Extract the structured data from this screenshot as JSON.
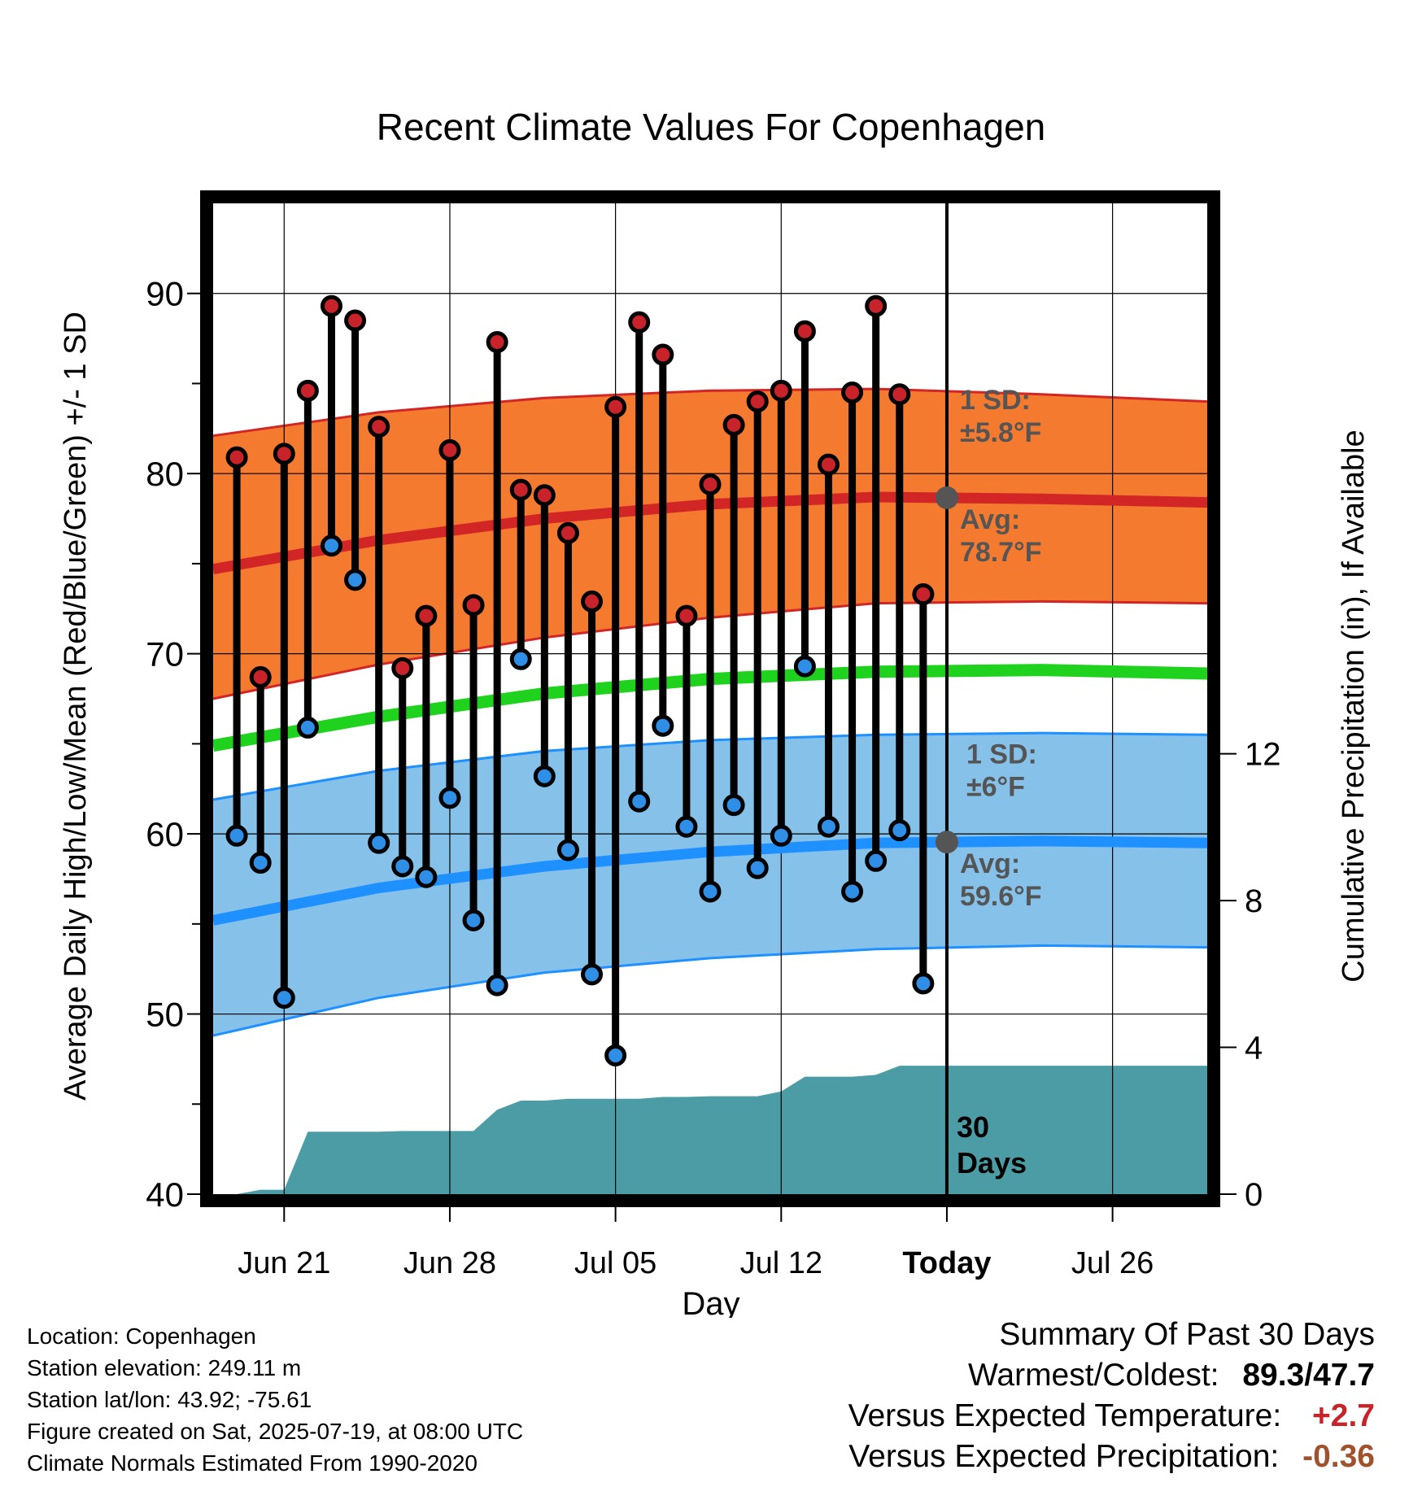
{
  "chart_data": {
    "type": "line",
    "title": "Recent Climate Values For Copenhagen",
    "xlabel": "Day",
    "ylabel": "Average Daily High/Low/Mean (Red/Blue/Green) +/- 1 SD",
    "y2label": "Cumulative Precipitation (in), If Available",
    "ylim": [
      40,
      95
    ],
    "y2lim": [
      0,
      27
    ],
    "yticks": [
      40,
      50,
      60,
      70,
      80,
      90
    ],
    "y2ticks": [
      0,
      4,
      8,
      12
    ],
    "x_start": "2025-06-18",
    "x_end": "2025-07-30",
    "today": "2025-07-19",
    "xtick_labels": [
      {
        "date": "2025-06-21",
        "label": "Jun 21"
      },
      {
        "date": "2025-06-28",
        "label": "Jun 28"
      },
      {
        "date": "2025-07-05",
        "label": "Jul 05"
      },
      {
        "date": "2025-07-12",
        "label": "Jul 12"
      },
      {
        "date": "2025-07-19",
        "label": "Today"
      },
      {
        "date": "2025-07-26",
        "label": "Jul 26"
      }
    ],
    "daily": {
      "dates": [
        "2025-06-19",
        "2025-06-20",
        "2025-06-21",
        "2025-06-22",
        "2025-06-23",
        "2025-06-24",
        "2025-06-25",
        "2025-06-26",
        "2025-06-27",
        "2025-06-28",
        "2025-06-29",
        "2025-06-30",
        "2025-07-01",
        "2025-07-02",
        "2025-07-03",
        "2025-07-04",
        "2025-07-05",
        "2025-07-06",
        "2025-07-07",
        "2025-07-08",
        "2025-07-09",
        "2025-07-10",
        "2025-07-11",
        "2025-07-12",
        "2025-07-13",
        "2025-07-14",
        "2025-07-15",
        "2025-07-16",
        "2025-07-17",
        "2025-07-18"
      ],
      "high": [
        80.9,
        68.7,
        81.1,
        84.6,
        89.3,
        88.5,
        82.6,
        69.2,
        72.1,
        81.3,
        72.7,
        87.3,
        79.1,
        78.8,
        76.7,
        72.9,
        83.7,
        88.4,
        86.6,
        72.1,
        79.4,
        82.7,
        84.0,
        84.6,
        87.9,
        80.5,
        84.5,
        89.3,
        84.4,
        73.3
      ],
      "low": [
        59.9,
        58.4,
        50.9,
        65.9,
        76.0,
        74.1,
        59.5,
        58.2,
        57.6,
        62.0,
        55.2,
        51.6,
        69.7,
        63.2,
        59.1,
        52.2,
        47.7,
        61.8,
        66.0,
        60.4,
        56.8,
        61.6,
        58.1,
        59.9,
        69.3,
        60.4,
        56.8,
        58.5,
        60.2,
        51.7
      ]
    },
    "normal_high": {
      "dates": [
        "2025-06-18",
        "2025-06-25",
        "2025-07-02",
        "2025-07-09",
        "2025-07-16",
        "2025-07-23",
        "2025-07-30"
      ],
      "mean": [
        74.7,
        76.3,
        77.5,
        78.3,
        78.7,
        78.6,
        78.4
      ],
      "upper": [
        82.1,
        83.4,
        84.2,
        84.6,
        84.7,
        84.4,
        84.0
      ],
      "lower": [
        67.5,
        69.4,
        70.9,
        72.0,
        72.8,
        72.9,
        72.8
      ]
    },
    "normal_mean": {
      "dates": [
        "2025-06-18",
        "2025-06-25",
        "2025-07-02",
        "2025-07-09",
        "2025-07-16",
        "2025-07-23",
        "2025-07-30"
      ],
      "values": [
        64.9,
        66.5,
        67.8,
        68.6,
        69.0,
        69.1,
        68.9
      ]
    },
    "normal_low": {
      "dates": [
        "2025-06-18",
        "2025-06-25",
        "2025-07-02",
        "2025-07-09",
        "2025-07-16",
        "2025-07-23",
        "2025-07-30"
      ],
      "mean": [
        55.2,
        57.0,
        58.2,
        59.0,
        59.5,
        59.6,
        59.5
      ],
      "upper": [
        61.9,
        63.5,
        64.6,
        65.2,
        65.5,
        65.6,
        65.5
      ],
      "lower": [
        48.8,
        50.9,
        52.3,
        53.1,
        53.6,
        53.8,
        53.7
      ]
    },
    "precip_cumulative": {
      "dates": [
        "2025-06-18",
        "2025-06-19",
        "2025-06-20",
        "2025-06-21",
        "2025-06-22",
        "2025-06-23",
        "2025-06-24",
        "2025-06-25",
        "2025-06-26",
        "2025-06-27",
        "2025-06-28",
        "2025-06-29",
        "2025-06-30",
        "2025-07-01",
        "2025-07-02",
        "2025-07-03",
        "2025-07-04",
        "2025-07-05",
        "2025-07-06",
        "2025-07-07",
        "2025-07-08",
        "2025-07-09",
        "2025-07-10",
        "2025-07-11",
        "2025-07-12",
        "2025-07-13",
        "2025-07-14",
        "2025-07-15",
        "2025-07-16",
        "2025-07-17",
        "2025-07-18",
        "2025-07-19",
        "2025-07-30"
      ],
      "values": [
        0.0,
        0.0,
        0.12,
        0.12,
        1.7,
        1.7,
        1.7,
        1.7,
        1.72,
        1.72,
        1.72,
        1.72,
        2.3,
        2.55,
        2.55,
        2.6,
        2.6,
        2.6,
        2.6,
        2.65,
        2.65,
        2.67,
        2.67,
        2.67,
        2.8,
        3.2,
        3.2,
        3.2,
        3.25,
        3.5,
        3.5,
        3.5,
        3.5
      ]
    },
    "annotations": {
      "high_sd": "1 SD:\n±5.8°F",
      "high_avg": "Avg:\n78.7°F",
      "low_sd": "1 SD:\n±6°F",
      "low_avg": "Avg:\n59.6°F",
      "period": "30\nDays"
    },
    "colors": {
      "high_band": "#f47a2f",
      "high_line": "#d22626",
      "low_band": "#85c1e9",
      "low_line": "#1e90ff",
      "mean_line": "#1ed21e",
      "precip": "#4b9ca5",
      "high_dot": "#c8232a",
      "low_dot": "#2f8fe6",
      "annotation": "#555555"
    }
  },
  "station_info": {
    "location": "Location: Copenhagen",
    "elevation": "Station elevation: 249.11 m",
    "latlon": "Station lat/lon: 43.92; -75.61",
    "created": "Figure created on Sat, 2025-07-19, at 08:00 UTC",
    "normals": "Climate Normals Estimated From 1990-2020"
  },
  "summary": {
    "title": "Summary Of Past 30 Days",
    "warm_cold_label": "Warmest/Coldest:",
    "warm_value": "89.3",
    "cold_value": "47.7",
    "temp_label": "Versus Expected Temperature:",
    "temp_value": "+2.7",
    "temp_color": "#c8232a",
    "precip_label": "Versus Expected Precipitation:",
    "precip_value": "-0.36",
    "precip_color": "#a0522d"
  }
}
